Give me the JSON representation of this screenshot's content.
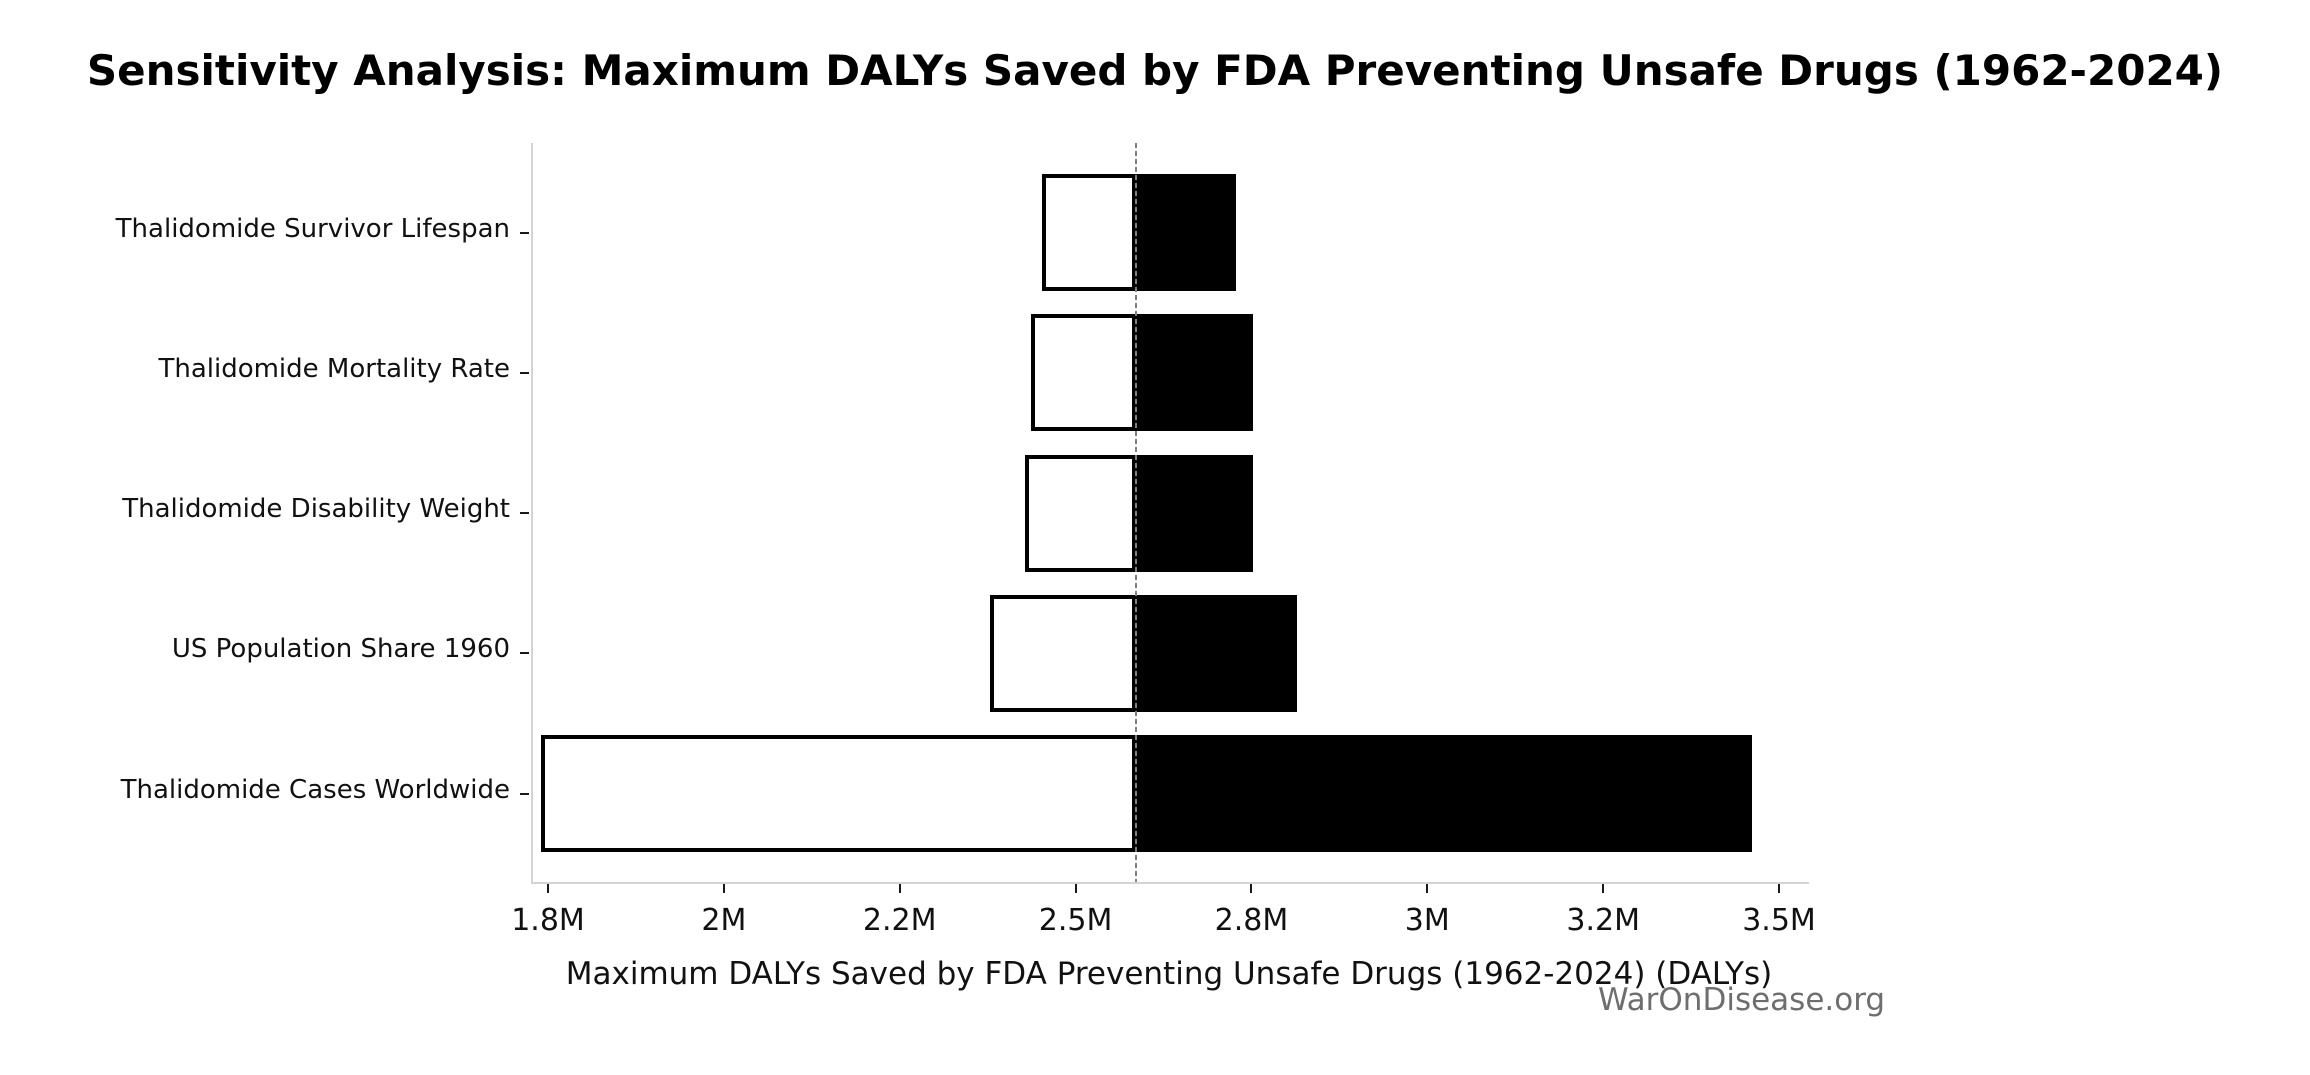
{
  "watermark": "WarOnDisease.org",
  "chart_data": {
    "type": "bar",
    "subtype": "tornado-sensitivity",
    "orientation": "horizontal",
    "title": "Sensitivity Analysis: Maximum DALYs Saved by FDA Preventing Unsafe Drugs (1962-2024)",
    "xlabel": "Maximum DALYs Saved by FDA Preventing Unsafe Drugs (1962-2024) (DALYs)",
    "ylabel": "",
    "grid": false,
    "legend_position": "none",
    "baseline_value": 2600000,
    "xlim": [
      1780000,
      3560000
    ],
    "x_ticks": [
      {
        "value": 1800000,
        "label": "1.8M"
      },
      {
        "value": 2000000,
        "label": "2M"
      },
      {
        "value": 2200000,
        "label": "2.2M"
      },
      {
        "value": 2500000,
        "label": "2.5M"
      },
      {
        "value": 2800000,
        "label": "2.8M"
      },
      {
        "value": 3000000,
        "label": "3M"
      },
      {
        "value": 3200000,
        "label": "3.2M"
      },
      {
        "value": 3500000,
        "label": "3.5M"
      }
    ],
    "categories": [
      "Thalidomide Survivor Lifespan",
      "Thalidomide Mortality Rate",
      "Thalidomide Disability Weight",
      "US Population Share 1960",
      "Thalidomide Cases Worldwide"
    ],
    "series": [
      {
        "name": "low_estimate",
        "values": [
          2440000,
          2420000,
          2410000,
          2350000,
          1790000
        ]
      },
      {
        "name": "high_estimate",
        "values": [
          2770000,
          2800000,
          2800000,
          2850000,
          3450000
        ]
      }
    ],
    "colors": {
      "low_fill": "#ffffff",
      "high_fill": "#000000",
      "bar_edge": "#000000",
      "baseline_line": "#7f7f7f",
      "spine": "#d4d4d4",
      "tick": "#1a1a1a",
      "text": "#111111",
      "watermark_text": "#6e6e6e"
    }
  }
}
